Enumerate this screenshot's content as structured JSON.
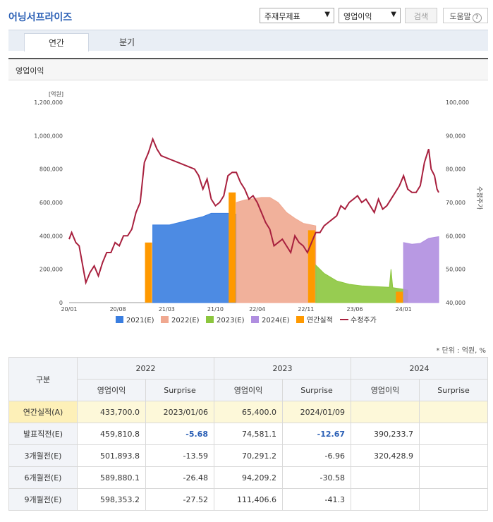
{
  "header": {
    "title": "어닝서프라이즈",
    "select_statement": "주재무제표",
    "select_item": "영업이익",
    "search_label": "검색",
    "help_label": "도움말",
    "help_q": "?"
  },
  "tabs": [
    {
      "label": "연간",
      "active": true
    },
    {
      "label": "분기",
      "active": false
    }
  ],
  "section_title": "영업이익",
  "chart_data": {
    "type": "area",
    "left_unit": "[억원]",
    "right_axis_label": "수정주가",
    "y_ticks_left": [
      "0",
      "200,000",
      "400,000",
      "600,000",
      "800,000",
      "1,000,000",
      "1,200,000"
    ],
    "y_ticks_right": [
      "40,000",
      "50,000",
      "60,000",
      "70,000",
      "80,000",
      "90,000",
      "100,000"
    ],
    "ylim_left": [
      0,
      1200000
    ],
    "ylim_right": [
      40000,
      100000
    ],
    "x_ticks": [
      {
        "label": "20/01",
        "t": 2020.0
      },
      {
        "label": "20/08",
        "t": 2020.583
      },
      {
        "label": "21/03",
        "t": 2021.167
      },
      {
        "label": "21/10",
        "t": 2021.75
      },
      {
        "label": "22/04",
        "t": 2022.25
      },
      {
        "label": "22/11",
        "t": 2022.833
      },
      {
        "label": "23/06",
        "t": 2023.417
      },
      {
        "label": "24/01",
        "t": 2024.0
      }
    ],
    "xlim": [
      2020.0,
      2024.42
    ],
    "legend": [
      "2021(E)",
      "2022(E)",
      "2023(E)",
      "2024(E)",
      "연간실적",
      "수정주가"
    ],
    "colors": {
      "2021(E)": "#3a7ee0",
      "2022(E)": "#f0a890",
      "2023(E)": "#8cc63e",
      "2024(E)": "#b08ee0",
      "연간실적": "#ff9900",
      "수정주가": "#a8203e"
    },
    "estimate_series": [
      {
        "name": "2021(E)",
        "points": [
          [
            2021.0,
            465000
          ],
          [
            2021.2,
            465000
          ],
          [
            2021.4,
            490000
          ],
          [
            2021.6,
            515000
          ],
          [
            2021.7,
            535000
          ],
          [
            2021.9,
            535000
          ],
          [
            2022.0,
            530000
          ]
        ]
      },
      {
        "name": "2022(E)",
        "points": [
          [
            2022.0,
            600000
          ],
          [
            2022.1,
            615000
          ],
          [
            2022.3,
            630000
          ],
          [
            2022.4,
            630000
          ],
          [
            2022.5,
            600000
          ],
          [
            2022.6,
            540000
          ],
          [
            2022.7,
            505000
          ],
          [
            2022.8,
            475000
          ],
          [
            2022.95,
            460000
          ]
        ]
      },
      {
        "name": "2023(E)",
        "points": [
          [
            2022.95,
            225000
          ],
          [
            2023.05,
            175000
          ],
          [
            2023.2,
            130000
          ],
          [
            2023.35,
            110000
          ],
          [
            2023.5,
            100000
          ],
          [
            2023.7,
            95000
          ],
          [
            2023.83,
            92000
          ],
          [
            2023.85,
            200000
          ],
          [
            2023.87,
            90000
          ],
          [
            2024.0,
            80000
          ],
          [
            2024.05,
            75000
          ]
        ]
      },
      {
        "name": "2024(E)",
        "points": [
          [
            2024.0,
            360000
          ],
          [
            2024.1,
            350000
          ],
          [
            2024.2,
            355000
          ],
          [
            2024.3,
            385000
          ],
          [
            2024.42,
            395000
          ]
        ]
      }
    ],
    "annual_results": [
      {
        "t": 2020.95,
        "value": 360000
      },
      {
        "t": 2021.95,
        "value": 660000
      },
      {
        "t": 2022.9,
        "value": 433700
      },
      {
        "t": 2023.95,
        "value": 65400
      }
    ],
    "price": [
      [
        2020.0,
        59000
      ],
      [
        2020.03,
        61000
      ],
      [
        2020.08,
        58000
      ],
      [
        2020.12,
        57000
      ],
      [
        2020.17,
        50000
      ],
      [
        2020.2,
        46000
      ],
      [
        2020.25,
        49000
      ],
      [
        2020.3,
        51000
      ],
      [
        2020.35,
        48000
      ],
      [
        2020.4,
        52000
      ],
      [
        2020.45,
        55000
      ],
      [
        2020.5,
        55000
      ],
      [
        2020.55,
        58000
      ],
      [
        2020.6,
        57000
      ],
      [
        2020.65,
        60000
      ],
      [
        2020.7,
        60000
      ],
      [
        2020.75,
        62000
      ],
      [
        2020.8,
        67000
      ],
      [
        2020.85,
        70000
      ],
      [
        2020.9,
        82000
      ],
      [
        2020.95,
        85000
      ],
      [
        2021.0,
        89000
      ],
      [
        2021.05,
        86000
      ],
      [
        2021.1,
        84000
      ],
      [
        2021.2,
        83000
      ],
      [
        2021.3,
        82000
      ],
      [
        2021.4,
        81000
      ],
      [
        2021.5,
        80000
      ],
      [
        2021.55,
        78000
      ],
      [
        2021.6,
        74000
      ],
      [
        2021.65,
        77000
      ],
      [
        2021.7,
        71000
      ],
      [
        2021.75,
        69000
      ],
      [
        2021.8,
        70000
      ],
      [
        2021.85,
        72000
      ],
      [
        2021.9,
        78000
      ],
      [
        2021.95,
        79000
      ],
      [
        2022.0,
        79000
      ],
      [
        2022.05,
        76000
      ],
      [
        2022.1,
        74000
      ],
      [
        2022.15,
        71000
      ],
      [
        2022.2,
        72000
      ],
      [
        2022.25,
        70000
      ],
      [
        2022.3,
        67000
      ],
      [
        2022.35,
        64000
      ],
      [
        2022.4,
        62000
      ],
      [
        2022.45,
        57000
      ],
      [
        2022.5,
        58000
      ],
      [
        2022.55,
        59000
      ],
      [
        2022.6,
        57000
      ],
      [
        2022.65,
        55000
      ],
      [
        2022.7,
        60000
      ],
      [
        2022.75,
        58000
      ],
      [
        2022.8,
        57000
      ],
      [
        2022.85,
        55000
      ],
      [
        2022.9,
        58000
      ],
      [
        2022.95,
        61000
      ],
      [
        2023.0,
        61000
      ],
      [
        2023.05,
        63000
      ],
      [
        2023.1,
        64000
      ],
      [
        2023.15,
        65000
      ],
      [
        2023.2,
        66000
      ],
      [
        2023.25,
        69000
      ],
      [
        2023.3,
        68000
      ],
      [
        2023.35,
        70000
      ],
      [
        2023.4,
        71000
      ],
      [
        2023.45,
        72000
      ],
      [
        2023.5,
        70000
      ],
      [
        2023.55,
        71000
      ],
      [
        2023.6,
        69000
      ],
      [
        2023.65,
        67000
      ],
      [
        2023.7,
        71000
      ],
      [
        2023.75,
        68000
      ],
      [
        2023.8,
        69000
      ],
      [
        2023.85,
        71000
      ],
      [
        2023.9,
        73000
      ],
      [
        2023.95,
        75000
      ],
      [
        2024.0,
        78000
      ],
      [
        2024.05,
        74000
      ],
      [
        2024.1,
        73000
      ],
      [
        2024.15,
        73000
      ],
      [
        2024.2,
        75000
      ],
      [
        2024.25,
        82000
      ],
      [
        2024.3,
        86000
      ],
      [
        2024.33,
        80000
      ],
      [
        2024.37,
        78000
      ],
      [
        2024.4,
        74000
      ],
      [
        2024.42,
        73000
      ]
    ]
  },
  "unit_note": "* 단위 : 억원, %",
  "table": {
    "corner_label": "구분",
    "years": [
      "2022",
      "2023",
      "2024"
    ],
    "sub_headers": [
      "영업이익",
      "Surprise"
    ],
    "rows": [
      {
        "label": "연간실적(A)",
        "cells": [
          "433,700.0",
          "2023/01/06",
          "65,400.0",
          "2024/01/09",
          "",
          ""
        ]
      },
      {
        "label": "발표직전(E)",
        "cells": [
          "459,810.8",
          "-5.68",
          "74,581.1",
          "-12.67",
          "390,233.7",
          ""
        ]
      },
      {
        "label": "3개월전(E)",
        "cells": [
          "501,893.8",
          "-13.59",
          "70,291.2",
          "-6.96",
          "320,428.9",
          ""
        ]
      },
      {
        "label": "6개월전(E)",
        "cells": [
          "589,880.1",
          "-26.48",
          "94,209.2",
          "-30.58",
          "",
          ""
        ]
      },
      {
        "label": "9개월전(E)",
        "cells": [
          "598,353.2",
          "-27.52",
          "111,406.6",
          "-41.3",
          "",
          ""
        ]
      }
    ]
  }
}
